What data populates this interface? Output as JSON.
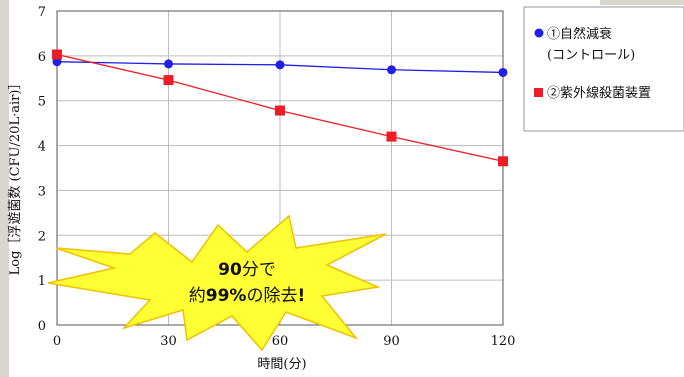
{
  "chart_data": {
    "type": "line",
    "xlabel": "時間(分)",
    "ylabel": "Log［浮遊菌数 (CFU/20L·air)］",
    "xlim": [
      0,
      120
    ],
    "ylim": [
      0,
      7
    ],
    "xticks": [
      0,
      30,
      60,
      90,
      120
    ],
    "yticks": [
      0,
      1,
      2,
      3,
      4,
      5,
      6,
      7
    ],
    "grid": true,
    "legend_position": "right",
    "series": [
      {
        "name": "①自然減衰",
        "name_line2": "(コントロール)",
        "color": "#1f1fe6",
        "marker": "circle",
        "x": [
          0,
          30,
          60,
          90,
          120
        ],
        "y": [
          5.87,
          5.82,
          5.8,
          5.69,
          5.63
        ]
      },
      {
        "name": "②紫外線殺菌装置",
        "color": "#ee1c24",
        "marker": "square",
        "x": [
          0,
          30,
          60,
          90,
          120
        ],
        "y": [
          6.03,
          5.46,
          4.78,
          4.2,
          3.65
        ]
      }
    ],
    "annotation": {
      "line1_bold": "90",
      "line1_rest": "分で",
      "line2_pre": "約",
      "line2_bold": "99%",
      "line2_mid": "の除去",
      "line2_end": "!",
      "fill": "#ffff33",
      "stroke": "#f0c000"
    }
  }
}
